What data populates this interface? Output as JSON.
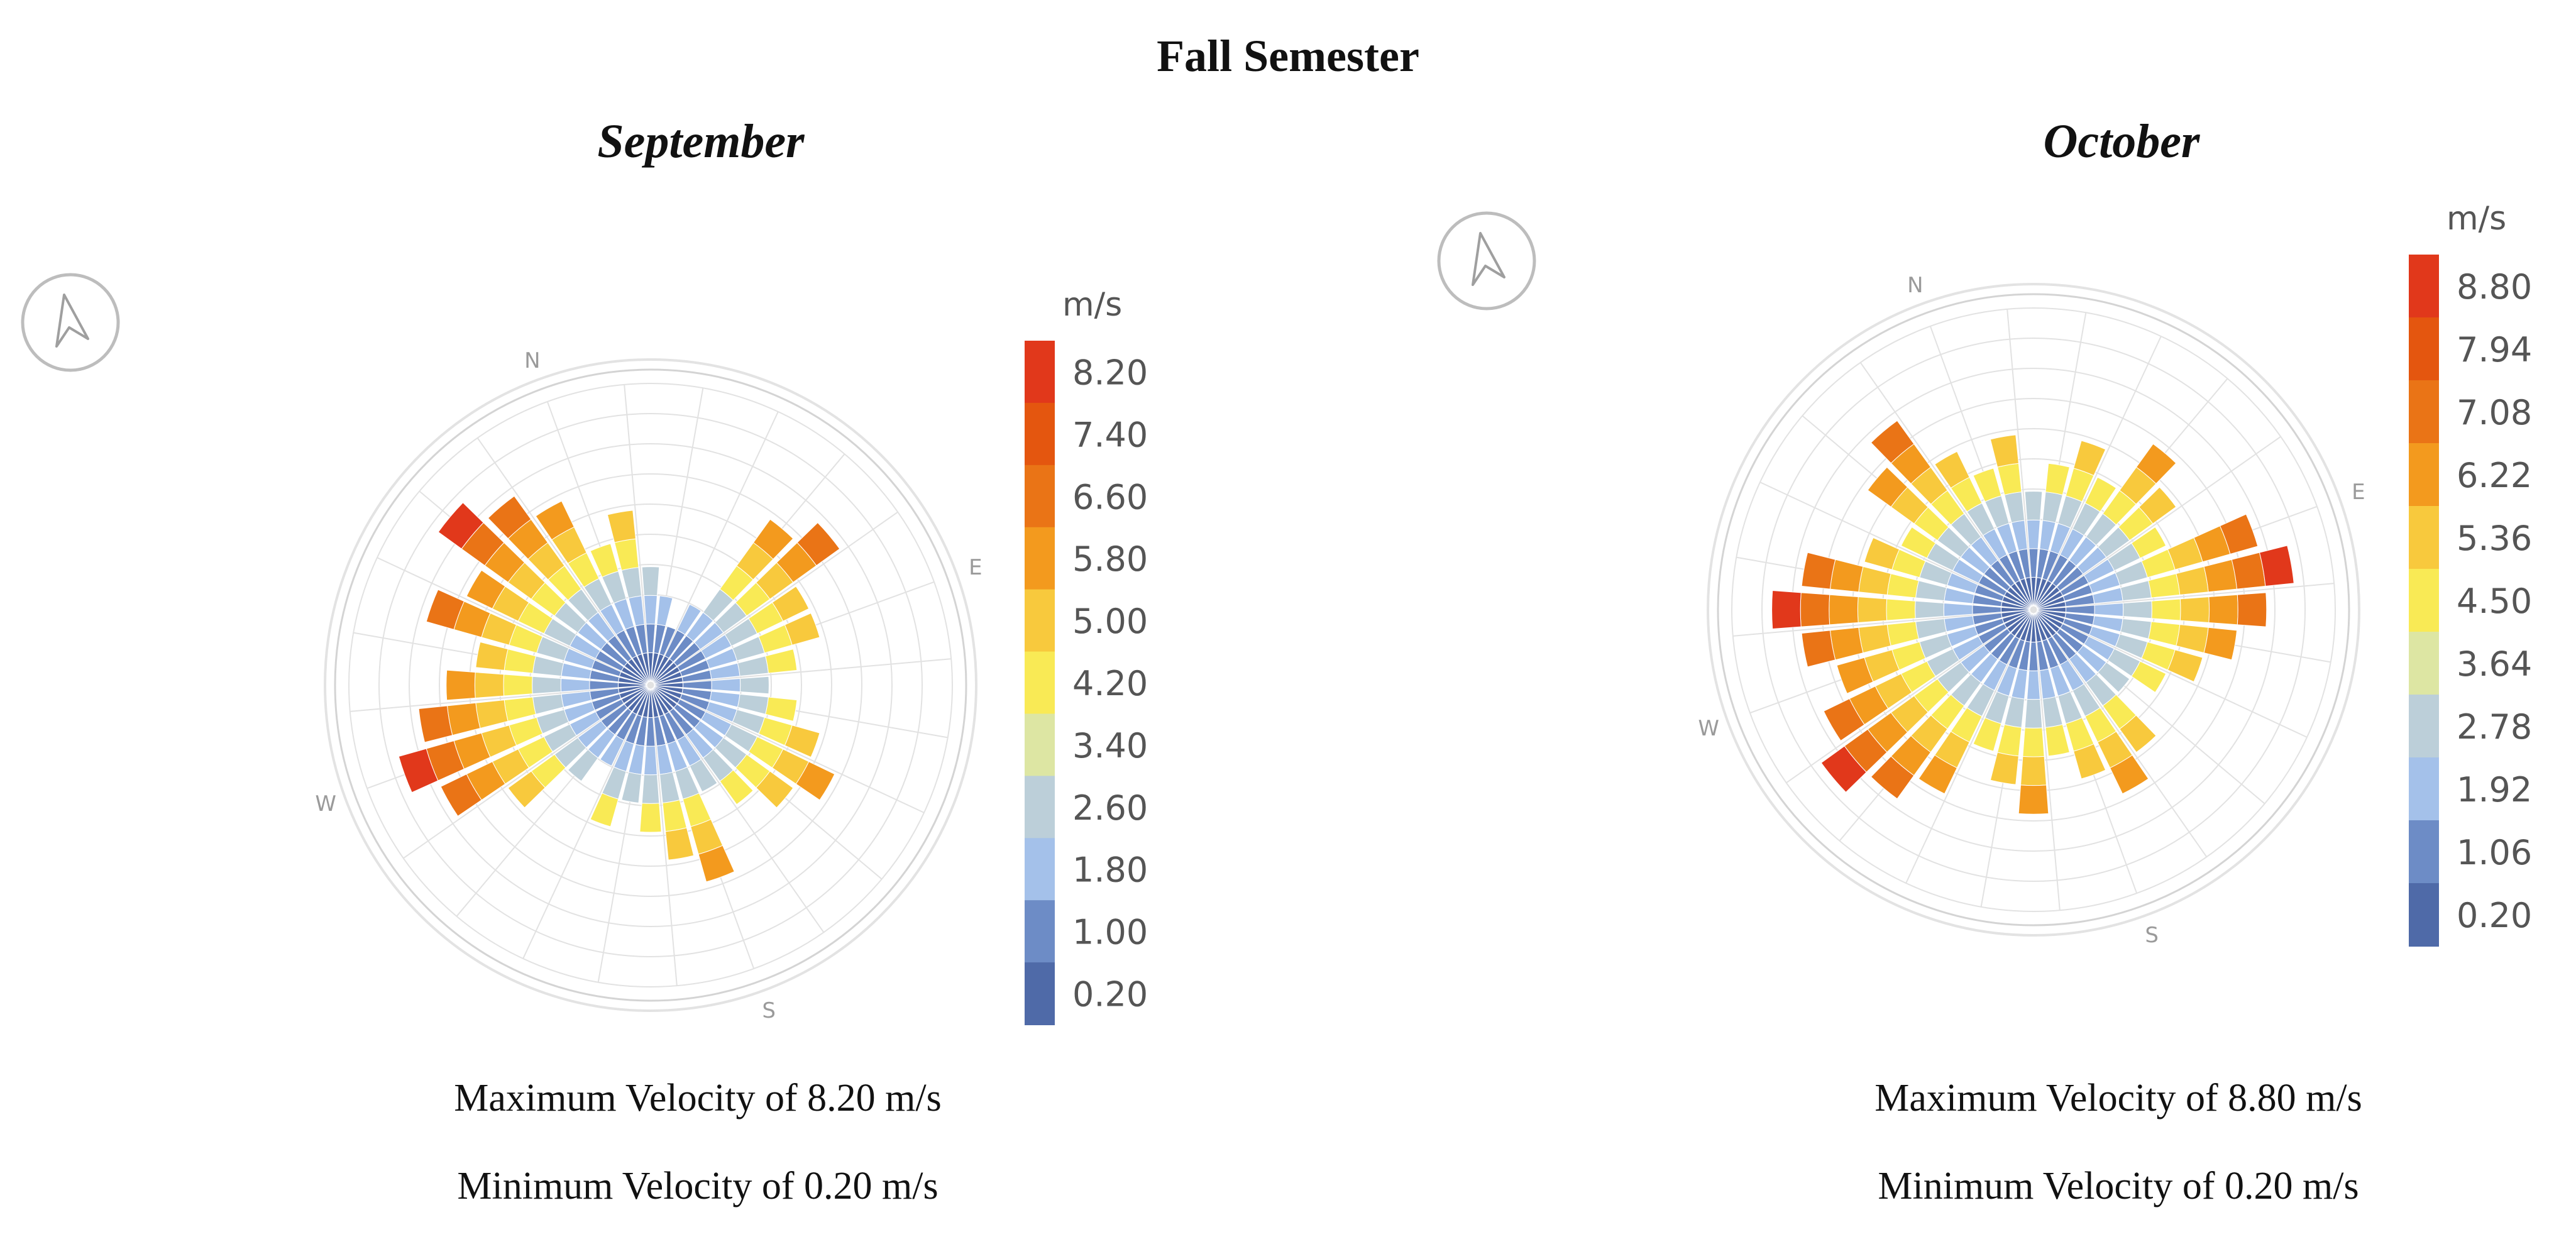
{
  "page_title": "Fall Semester",
  "chart_data": [
    {
      "type": "wind-rose",
      "title": "September",
      "unit": "m/s",
      "legend_ticks": [
        "8.20",
        "7.40",
        "6.60",
        "5.80",
        "5.00",
        "4.20",
        "3.40",
        "2.60",
        "1.80",
        "1.00",
        "0.20"
      ],
      "colors": [
        "#4f6aa8",
        "#6d8cc6",
        "#a4c1ea",
        "#bccfd9",
        "#dde6a3",
        "#f9ea55",
        "#f8c93d",
        "#f39a1e",
        "#ea7416",
        "#e4560f",
        "#e1381b"
      ],
      "cardinals": [
        "N",
        "E",
        "S",
        "W"
      ],
      "north_offset_deg": -20,
      "directions": 36,
      "rings": 10,
      "spoke_lengths": [
        5,
        6,
        4,
        3,
        2,
        3,
        7,
        8,
        6,
        6,
        5,
        4,
        5,
        6,
        7,
        6,
        5,
        4,
        7,
        6,
        5,
        4,
        5,
        3,
        4,
        6,
        8,
        9,
        8,
        7,
        6,
        8,
        7,
        9,
        8,
        7
      ],
      "max_label": "Maximum Velocity of 8.20 m/s",
      "min_label": "Minimum Velocity of 0.20 m/s"
    },
    {
      "type": "wind-rose",
      "title": "October",
      "unit": "m/s",
      "legend_ticks": [
        "8.80",
        "7.94",
        "7.08",
        "6.22",
        "5.36",
        "4.50",
        "3.64",
        "2.78",
        "1.92",
        "1.06",
        "0.20"
      ],
      "colors": [
        "#4f6aa8",
        "#6d8cc6",
        "#a4c1ea",
        "#bccfd9",
        "#dde6a3",
        "#f9ea55",
        "#f8c93d",
        "#f39a1e",
        "#ea7416",
        "#e4560f",
        "#e1381b"
      ],
      "cardinals": [
        "N",
        "E",
        "S",
        "W"
      ],
      "north_offset_deg": -20,
      "directions": 36,
      "rings": 10,
      "spoke_lengths": [
        5,
        6,
        4,
        5,
        6,
        5,
        7,
        6,
        5,
        8,
        9,
        8,
        7,
        6,
        5,
        4,
        6,
        7,
        6,
        5,
        7,
        6,
        5,
        7,
        8,
        9,
        8,
        7,
        8,
        9,
        8,
        6,
        5,
        7,
        8,
        6
      ],
      "max_label": "Maximum Velocity of 8.80 m/s",
      "min_label": "Minimum Velocity of 0.20 m/s"
    }
  ]
}
